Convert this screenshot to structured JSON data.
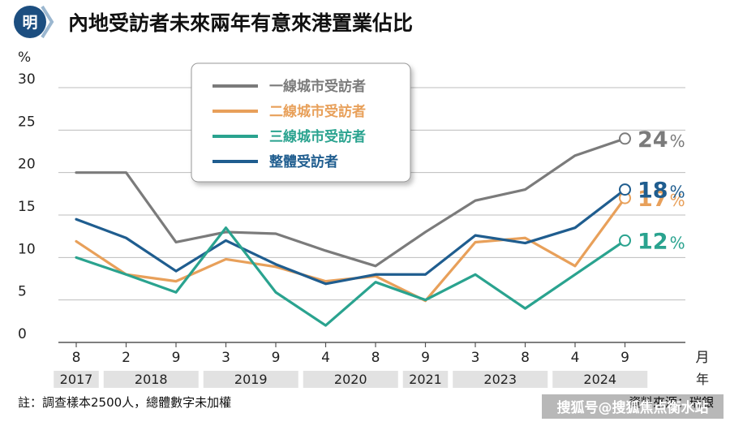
{
  "header": {
    "logo_char": "明",
    "title": "內地受訪者未來兩年有意來港置業佔比"
  },
  "colors": {
    "grey": "#7b7b7b",
    "orange": "#e8a05a",
    "teal": "#2aa38f",
    "navy": "#1f5d8f",
    "year_band": "#e2e2e2",
    "logo": "#1c4e80"
  },
  "chart_data": {
    "type": "line",
    "ylabel": "%",
    "ylim": [
      0,
      30
    ],
    "yticks": [
      0,
      5,
      10,
      15,
      20,
      25,
      30
    ],
    "x_unit": "月",
    "year_unit": "年",
    "categories": [
      "8",
      "2",
      "9",
      "3",
      "9",
      "4",
      "8",
      "9",
      "3",
      "8",
      "4",
      "9"
    ],
    "year_groups": [
      {
        "label": "2017",
        "span": [
          0,
          0
        ]
      },
      {
        "label": "2018",
        "span": [
          1,
          2
        ]
      },
      {
        "label": "2019",
        "span": [
          3,
          4
        ]
      },
      {
        "label": "2020",
        "span": [
          5,
          6
        ]
      },
      {
        "label": "2021",
        "span": [
          7,
          7
        ]
      },
      {
        "label": "2023",
        "span": [
          8,
          9
        ]
      },
      {
        "label": "2024",
        "span": [
          10,
          11
        ]
      }
    ],
    "series": [
      {
        "name": "一線城市受訪者",
        "color": "#7b7b7b",
        "values": [
          20,
          20,
          11.8,
          13,
          12.8,
          10.8,
          9,
          13,
          16.7,
          18,
          22,
          24
        ],
        "end_label": "24",
        "end_unit": "%"
      },
      {
        "name": "二線城市受訪者",
        "color": "#e8a05a",
        "values": [
          11.9,
          8,
          7.2,
          9.8,
          8.9,
          7.2,
          7.8,
          4.9,
          11.8,
          12.3,
          9,
          17
        ],
        "end_label": "17",
        "end_unit": "%"
      },
      {
        "name": "三線城市受訪者",
        "color": "#2aa38f",
        "values": [
          10,
          8,
          5.9,
          13.5,
          5.9,
          2,
          7.1,
          5,
          8,
          4,
          8,
          12
        ],
        "end_label": "12",
        "end_unit": "%"
      },
      {
        "name": "整體受訪者",
        "color": "#1f5d8f",
        "values": [
          14.5,
          12.3,
          8.4,
          12,
          9.2,
          6.9,
          8,
          8,
          12.6,
          11.7,
          13.5,
          18
        ],
        "end_label": "18",
        "end_unit": "%"
      }
    ]
  },
  "footer": {
    "note": "註：調查樣本2500人，總體數字未加權",
    "source": "資料來源：瑞銀",
    "watermark": "搜狐号@搜狐焦点衡水站"
  }
}
